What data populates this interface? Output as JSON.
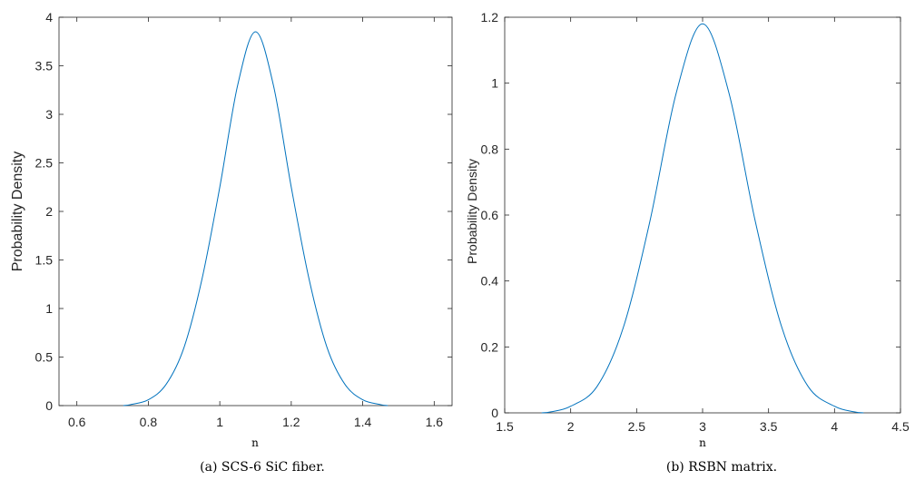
{
  "chart_data": [
    {
      "type": "line",
      "ylabel": "Probability Density",
      "xlabel": "n",
      "caption": "(a)  SCS-6 SiC fiber.",
      "xlim": [
        0.55,
        1.65
      ],
      "ylim": [
        0,
        4
      ],
      "xticks": [
        0.6,
        0.8,
        1,
        1.2,
        1.4,
        1.6
      ],
      "xtick_labels": [
        "0.6",
        "0.8",
        "1",
        "1.2",
        "1.4",
        "1.6"
      ],
      "yticks": [
        0,
        0.5,
        1,
        1.5,
        2,
        2.5,
        3,
        3.5,
        4
      ],
      "ytick_labels": [
        "0",
        "0.5",
        "1",
        "1.5",
        "2",
        "2.5",
        "3",
        "3.5",
        "4"
      ],
      "grid": false,
      "line_color": "#0072BD",
      "series": [
        {
          "x": [
            0.73,
            0.75,
            0.8,
            0.85,
            0.9,
            0.95,
            1.0,
            1.05,
            1.1,
            1.15,
            1.2,
            1.25,
            1.3,
            1.35,
            1.4,
            1.45,
            1.47
          ],
          "y": [
            0.0,
            0.01,
            0.06,
            0.22,
            0.6,
            1.3,
            2.25,
            3.3,
            3.85,
            3.3,
            2.25,
            1.3,
            0.6,
            0.22,
            0.06,
            0.01,
            0.0
          ]
        }
      ]
    },
    {
      "type": "line",
      "ylabel": "Probability Density",
      "xlabel": "n",
      "caption": "(b)  RSBN matrix.",
      "xlim": [
        1.5,
        4.5
      ],
      "ylim": [
        0,
        1.2
      ],
      "xticks": [
        1.5,
        2,
        2.5,
        3,
        3.5,
        4,
        4.5
      ],
      "xtick_labels": [
        "1.5",
        "2",
        "2.5",
        "3",
        "3.5",
        "4",
        "4.5"
      ],
      "yticks": [
        0,
        0.2,
        0.4,
        0.6,
        0.8,
        1,
        1.2
      ],
      "ytick_labels": [
        "0",
        "0.2",
        "0.4",
        "0.6",
        "0.8",
        "1",
        "1.2"
      ],
      "grid": false,
      "line_color": "#0072BD",
      "series": [
        {
          "x": [
            1.78,
            1.85,
            2.0,
            2.2,
            2.4,
            2.6,
            2.8,
            3.0,
            3.2,
            3.4,
            3.6,
            3.8,
            4.0,
            4.15,
            4.22
          ],
          "y": [
            0.0,
            0.003,
            0.02,
            0.08,
            0.26,
            0.58,
            0.97,
            1.18,
            0.97,
            0.58,
            0.26,
            0.08,
            0.02,
            0.003,
            0.0
          ]
        }
      ]
    }
  ]
}
